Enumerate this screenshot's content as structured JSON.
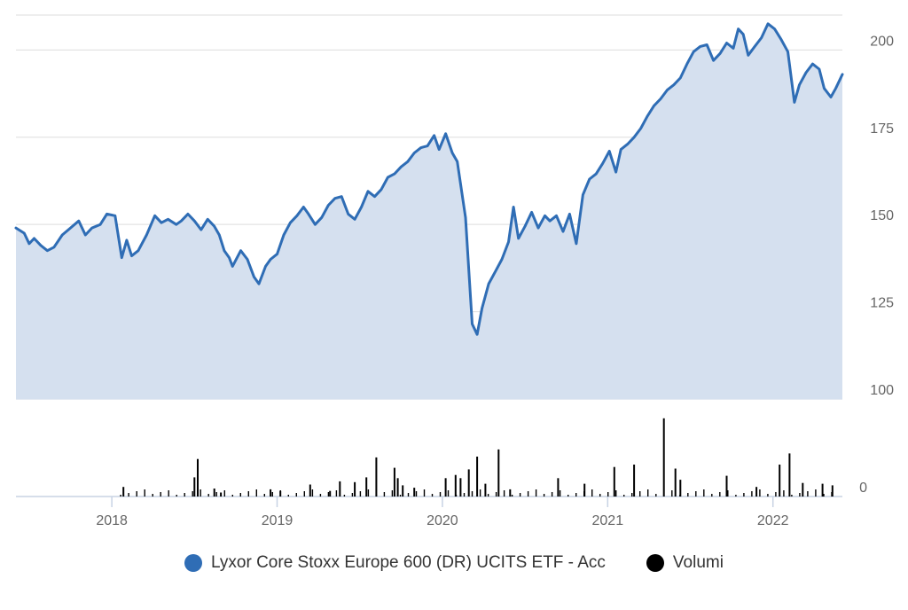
{
  "chart_data": {
    "type": "line",
    "title": "",
    "xlabel": "",
    "ylabel": "",
    "price_axis": {
      "ylim": [
        100,
        210
      ],
      "ticks": [
        100,
        125,
        150,
        175,
        200
      ],
      "tick_labels": [
        "100",
        "125",
        "150",
        "175",
        "200"
      ],
      "position": "right"
    },
    "volume_axis": {
      "ticks": [
        0
      ],
      "tick_labels": [
        "0"
      ],
      "position": "right"
    },
    "x_axis": {
      "range": [
        2017.42,
        2022.42
      ],
      "ticks": [
        2018,
        2019,
        2020,
        2021,
        2022
      ],
      "tick_labels": [
        "2018",
        "2019",
        "2020",
        "2021",
        "2022"
      ]
    },
    "grid": true,
    "legend_placement": "bottom-center",
    "series": [
      {
        "name": "Lyxor Core Stoxx Europe 600 (DR) UCITS ETF - Acc",
        "type": "area-line",
        "color": "#2f6db5",
        "fill": "#d5e0ef",
        "points": [
          [
            2017.42,
            149.0
          ],
          [
            2017.47,
            147.5
          ],
          [
            2017.5,
            144.5
          ],
          [
            2017.53,
            146.0
          ],
          [
            2017.57,
            144.0
          ],
          [
            2017.61,
            142.5
          ],
          [
            2017.65,
            143.5
          ],
          [
            2017.7,
            147.0
          ],
          [
            2017.75,
            149.0
          ],
          [
            2017.8,
            151.0
          ],
          [
            2017.84,
            147.0
          ],
          [
            2017.88,
            149.0
          ],
          [
            2017.93,
            150.0
          ],
          [
            2017.97,
            153.0
          ],
          [
            2018.02,
            152.5
          ],
          [
            2018.06,
            140.5
          ],
          [
            2018.09,
            145.5
          ],
          [
            2018.12,
            141.0
          ],
          [
            2018.16,
            142.5
          ],
          [
            2018.21,
            147.0
          ],
          [
            2018.26,
            152.5
          ],
          [
            2018.3,
            150.5
          ],
          [
            2018.34,
            151.5
          ],
          [
            2018.39,
            150.0
          ],
          [
            2018.42,
            151.0
          ],
          [
            2018.46,
            153.0
          ],
          [
            2018.5,
            151.0
          ],
          [
            2018.54,
            148.5
          ],
          [
            2018.58,
            151.5
          ],
          [
            2018.62,
            149.5
          ],
          [
            2018.65,
            147.0
          ],
          [
            2018.68,
            142.5
          ],
          [
            2018.71,
            140.5
          ],
          [
            2018.73,
            138.0
          ],
          [
            2018.78,
            142.5
          ],
          [
            2018.82,
            140.0
          ],
          [
            2018.86,
            135.0
          ],
          [
            2018.89,
            133.0
          ],
          [
            2018.93,
            138.0
          ],
          [
            2018.96,
            140.0
          ],
          [
            2019.0,
            141.5
          ],
          [
            2019.04,
            147.0
          ],
          [
            2019.08,
            150.5
          ],
          [
            2019.12,
            152.5
          ],
          [
            2019.16,
            155.0
          ],
          [
            2019.19,
            153.0
          ],
          [
            2019.23,
            150.0
          ],
          [
            2019.27,
            152.0
          ],
          [
            2019.31,
            155.5
          ],
          [
            2019.35,
            157.5
          ],
          [
            2019.39,
            158.0
          ],
          [
            2019.43,
            153.0
          ],
          [
            2019.47,
            151.5
          ],
          [
            2019.51,
            155.0
          ],
          [
            2019.55,
            159.5
          ],
          [
            2019.59,
            158.0
          ],
          [
            2019.63,
            160.0
          ],
          [
            2019.67,
            163.5
          ],
          [
            2019.71,
            164.5
          ],
          [
            2019.75,
            166.5
          ],
          [
            2019.79,
            168.0
          ],
          [
            2019.83,
            170.5
          ],
          [
            2019.87,
            172.0
          ],
          [
            2019.91,
            172.5
          ],
          [
            2019.95,
            175.5
          ],
          [
            2019.98,
            171.5
          ],
          [
            2020.02,
            176.0
          ],
          [
            2020.06,
            170.5
          ],
          [
            2020.09,
            168.0
          ],
          [
            2020.14,
            152.0
          ],
          [
            2020.18,
            121.5
          ],
          [
            2020.21,
            118.5
          ],
          [
            2020.24,
            126.0
          ],
          [
            2020.28,
            133.0
          ],
          [
            2020.32,
            136.5
          ],
          [
            2020.36,
            140.0
          ],
          [
            2020.4,
            145.0
          ],
          [
            2020.43,
            155.0
          ],
          [
            2020.46,
            146.0
          ],
          [
            2020.5,
            149.5
          ],
          [
            2020.54,
            153.5
          ],
          [
            2020.58,
            149.0
          ],
          [
            2020.62,
            152.5
          ],
          [
            2020.65,
            151.0
          ],
          [
            2020.69,
            152.5
          ],
          [
            2020.73,
            148.0
          ],
          [
            2020.77,
            153.0
          ],
          [
            2020.81,
            144.5
          ],
          [
            2020.85,
            158.5
          ],
          [
            2020.89,
            163.0
          ],
          [
            2020.93,
            164.5
          ],
          [
            2020.97,
            167.5
          ],
          [
            2021.01,
            171.0
          ],
          [
            2021.05,
            165.0
          ],
          [
            2021.08,
            171.5
          ],
          [
            2021.12,
            173.0
          ],
          [
            2021.16,
            175.0
          ],
          [
            2021.2,
            177.5
          ],
          [
            2021.24,
            181.0
          ],
          [
            2021.28,
            184.0
          ],
          [
            2021.32,
            186.0
          ],
          [
            2021.36,
            188.5
          ],
          [
            2021.4,
            190.0
          ],
          [
            2021.44,
            192.0
          ],
          [
            2021.48,
            196.0
          ],
          [
            2021.52,
            199.5
          ],
          [
            2021.56,
            201.0
          ],
          [
            2021.6,
            201.5
          ],
          [
            2021.64,
            197.0
          ],
          [
            2021.68,
            199.0
          ],
          [
            2021.72,
            202.0
          ],
          [
            2021.76,
            200.5
          ],
          [
            2021.79,
            206.0
          ],
          [
            2021.82,
            204.5
          ],
          [
            2021.85,
            198.5
          ],
          [
            2021.89,
            201.0
          ],
          [
            2021.93,
            203.5
          ],
          [
            2021.97,
            207.5
          ],
          [
            2022.01,
            206.0
          ],
          [
            2022.05,
            203.0
          ],
          [
            2022.09,
            199.5
          ],
          [
            2022.13,
            185.0
          ],
          [
            2022.16,
            190.0
          ],
          [
            2022.2,
            193.5
          ],
          [
            2022.24,
            196.0
          ],
          [
            2022.28,
            194.5
          ],
          [
            2022.31,
            189.0
          ],
          [
            2022.35,
            186.5
          ],
          [
            2022.38,
            189.0
          ],
          [
            2022.42,
            193.0
          ]
        ]
      },
      {
        "name": "Volumi",
        "type": "bar",
        "color": "#000000",
        "relative_heights": [
          [
            2018.07,
            0.12
          ],
          [
            2018.5,
            0.24
          ],
          [
            2018.52,
            0.47
          ],
          [
            2018.62,
            0.1
          ],
          [
            2018.66,
            0.05
          ],
          [
            2018.96,
            0.09
          ],
          [
            2019.02,
            0.07
          ],
          [
            2019.2,
            0.15
          ],
          [
            2019.32,
            0.07
          ],
          [
            2019.38,
            0.19
          ],
          [
            2019.47,
            0.18
          ],
          [
            2019.54,
            0.24
          ],
          [
            2019.6,
            0.49
          ],
          [
            2019.71,
            0.36
          ],
          [
            2019.73,
            0.23
          ],
          [
            2019.76,
            0.14
          ],
          [
            2019.83,
            0.11
          ],
          [
            2020.02,
            0.23
          ],
          [
            2020.08,
            0.27
          ],
          [
            2020.11,
            0.23
          ],
          [
            2020.16,
            0.34
          ],
          [
            2020.21,
            0.5
          ],
          [
            2020.26,
            0.16
          ],
          [
            2020.34,
            0.59
          ],
          [
            2020.41,
            0.09
          ],
          [
            2020.7,
            0.23
          ],
          [
            2020.86,
            0.16
          ],
          [
            2021.04,
            0.37
          ],
          [
            2021.16,
            0.4
          ],
          [
            2021.34,
            0.98
          ],
          [
            2021.41,
            0.35
          ],
          [
            2021.44,
            0.21
          ],
          [
            2021.72,
            0.26
          ],
          [
            2021.9,
            0.12
          ],
          [
            2022.04,
            0.4
          ],
          [
            2022.1,
            0.54
          ],
          [
            2022.18,
            0.17
          ],
          [
            2022.3,
            0.16
          ],
          [
            2022.36,
            0.14
          ]
        ]
      }
    ],
    "legend": [
      {
        "label": "Lyxor Core Stoxx Europe 600 (DR) UCITS ETF - Acc",
        "color": "#2f6db5"
      },
      {
        "label": "Volumi",
        "color": "#000000"
      }
    ]
  }
}
